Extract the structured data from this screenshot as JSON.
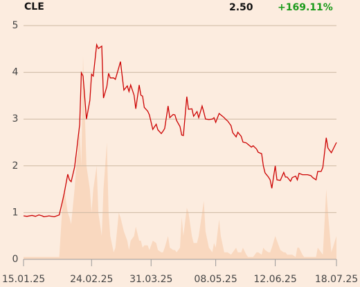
{
  "chart_data": {
    "type": "line",
    "title": "CLE",
    "price": "2.50",
    "change": "+169.11%",
    "x": [
      "15.01.25",
      "17.01.25",
      "20.01.25",
      "22.01.25",
      "24.01.25",
      "26.01.25",
      "27.01.25",
      "30.01.25",
      "02.02.25",
      "05.02.25",
      "07.02.25",
      "08.02.25",
      "10.02.25",
      "11.02.25",
      "12.02.25",
      "14.02.25",
      "15.02.25",
      "17.02.25",
      "18.02.25",
      "19.02.25",
      "21.02.25",
      "23.02.25",
      "24.02.25",
      "25.02.25",
      "27.02.25",
      "28.02.25",
      "02.03.25",
      "03.03.25",
      "05.03.25",
      "06.03.25",
      "07.03.25",
      "09.03.25",
      "10.03.25",
      "12.03.25",
      "13.03.25",
      "15.03.25",
      "17.03.25",
      "18.03.25",
      "19.03.25",
      "21.03.25",
      "22.03.25",
      "24.03.25",
      "25.03.25",
      "26.03.25",
      "27.03.25",
      "29.03.25",
      "30.03.25",
      "01.04.25",
      "03.04.25",
      "04.04.25",
      "06.04.25",
      "07.04.25",
      "08.04.25",
      "10.04.25",
      "11.04.25",
      "13.04.25",
      "14.04.25",
      "15.04.25",
      "17.04.25",
      "18.04.25",
      "19.04.25",
      "21.04.25",
      "22.04.25",
      "24.04.25",
      "25.04.25",
      "27.04.25",
      "28.04.25",
      "30.04.25",
      "01.05.25",
      "02.05.25",
      "04.05.25",
      "06.05.25",
      "07.05.25",
      "08.05.25",
      "10.05.25",
      "11.05.25",
      "13.05.25",
      "14.05.25",
      "15.05.25",
      "17.05.25",
      "18.05.25",
      "20.05.25",
      "21.05.25",
      "23.05.25",
      "24.05.25",
      "26.05.25",
      "27.05.25",
      "29.05.25",
      "30.05.25",
      "01.06.25",
      "02.06.25",
      "04.06.25",
      "05.06.25",
      "06.06.25",
      "08.06.25",
      "09.06.25",
      "10.06.25",
      "12.06.25",
      "13.06.25",
      "15.06.25",
      "17.06.25",
      "18.06.25",
      "19.06.25",
      "21.06.25",
      "22.06.25",
      "24.06.25",
      "25.06.25",
      "26.06.25",
      "28.06.25",
      "29.06.25",
      "01.07.25",
      "03.07.25",
      "04.07.25",
      "06.07.25",
      "07.07.25",
      "09.07.25",
      "10.07.25",
      "12.07.25",
      "13.07.25",
      "15.07.25",
      "18.07.25"
    ],
    "values": [
      0.93,
      0.92,
      0.94,
      0.92,
      0.95,
      0.93,
      0.91,
      0.93,
      0.91,
      0.95,
      1.26,
      1.43,
      1.82,
      1.7,
      1.66,
      1.97,
      2.26,
      2.88,
      3.99,
      3.92,
      3.0,
      3.4,
      3.96,
      3.92,
      4.59,
      4.51,
      4.56,
      3.45,
      3.7,
      3.98,
      3.88,
      3.88,
      3.85,
      4.1,
      4.23,
      3.62,
      3.71,
      3.59,
      3.73,
      3.51,
      3.22,
      3.73,
      3.51,
      3.49,
      3.25,
      3.17,
      3.09,
      2.78,
      2.89,
      2.77,
      2.69,
      2.74,
      2.8,
      3.28,
      3.03,
      3.1,
      3.09,
      2.97,
      2.84,
      2.66,
      2.65,
      3.48,
      3.21,
      3.22,
      3.06,
      3.16,
      3.03,
      3.28,
      3.15,
      3.0,
      2.99,
      3.0,
      3.03,
      2.93,
      3.12,
      3.09,
      3.03,
      2.99,
      2.96,
      2.86,
      2.71,
      2.62,
      2.72,
      2.63,
      2.51,
      2.49,
      2.46,
      2.4,
      2.43,
      2.36,
      2.29,
      2.26,
      2.0,
      1.85,
      1.76,
      1.7,
      1.52,
      2.0,
      1.7,
      1.69,
      1.86,
      1.76,
      1.76,
      1.67,
      1.75,
      1.78,
      1.7,
      1.84,
      1.81,
      1.81,
      1.81,
      1.79,
      1.75,
      1.7,
      1.88,
      1.88,
      1.97,
      2.6,
      2.38,
      2.28,
      2.5
    ],
    "color": "#cc0000",
    "volume": {
      "values": [
        1,
        1,
        1,
        1,
        1,
        1,
        1,
        1,
        1,
        1,
        25,
        30,
        20,
        18,
        15,
        30,
        40,
        55,
        40,
        87,
        40,
        30,
        20,
        30,
        40,
        20,
        10,
        30,
        50,
        20,
        10,
        3,
        5,
        20,
        18,
        12,
        8,
        4,
        8,
        10,
        14,
        8,
        8,
        5,
        6,
        6,
        4,
        8,
        7,
        4,
        3,
        3,
        5,
        10,
        5,
        4,
        4,
        3,
        5,
        18,
        10,
        22,
        20,
        10,
        7,
        7,
        10,
        20,
        25,
        12,
        5,
        3,
        7,
        5,
        17,
        10,
        3,
        3,
        3,
        2,
        3,
        5,
        3,
        3,
        5,
        2,
        1,
        1,
        1,
        3,
        3,
        2,
        5,
        4,
        3,
        3,
        5,
        10,
        8,
        4,
        3,
        3,
        2,
        2,
        2,
        1,
        5,
        5,
        2,
        1,
        1,
        1,
        1,
        1,
        5,
        3,
        2,
        30,
        20,
        3,
        10
      ],
      "color": "#f9d8bf",
      "y2lim": [
        0,
        100
      ]
    },
    "xlim": [
      "15.01.25",
      "18.07.25"
    ],
    "xticks": [
      "15.01.25",
      "24.02.25",
      "31.03.25",
      "08.05.25",
      "12.06.25",
      "18.07.25"
    ],
    "ylim": [
      0,
      5
    ],
    "yticks": [
      0,
      1,
      2,
      3,
      4,
      5
    ],
    "grid": true
  }
}
